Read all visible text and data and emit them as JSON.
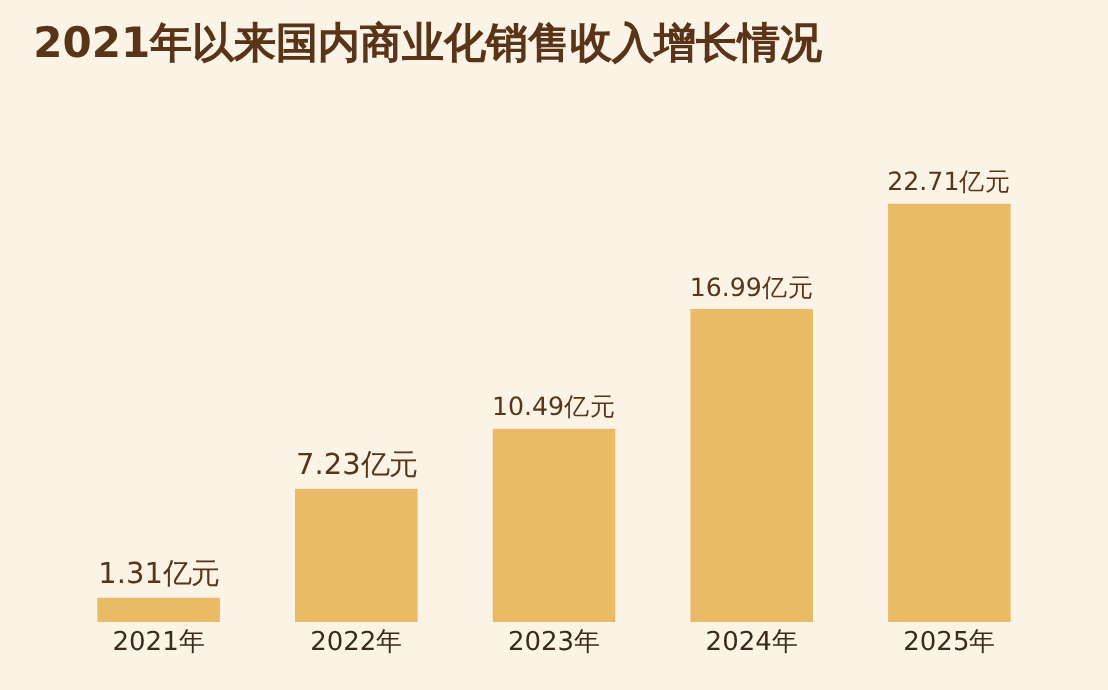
{
  "chart_data": {
    "type": "bar",
    "title": "2021年以来国内商业化销售收入增长情况",
    "categories": [
      "2021年",
      "2022年",
      "2023年",
      "2024年",
      "2025年"
    ],
    "values": [
      1.31,
      7.23,
      10.49,
      16.99,
      22.71
    ],
    "value_labels": [
      "1.31亿元",
      "7.23亿元",
      "10.49亿元",
      "16.99亿元",
      "22.71亿元"
    ],
    "color": "#e9bb66",
    "grid": false,
    "legend": false
  }
}
